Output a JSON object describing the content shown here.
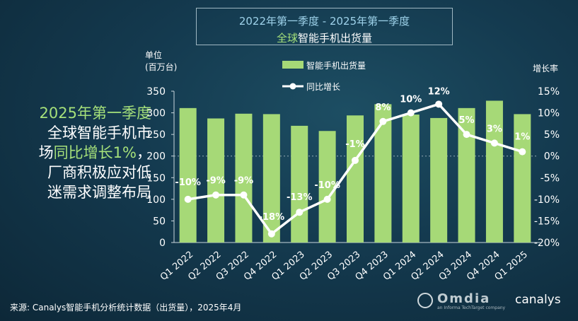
{
  "title": {
    "line1": "2022年第一季度 - 2025年第一季度",
    "line2_prefix": "全球",
    "line2_rest": "智能手机出货量"
  },
  "left_text": {
    "line1": "2025年第一季度",
    "line2": "全球智能手机市",
    "line3_prefix": "场",
    "line3_highlight": "同比增长1%",
    "line3_suffix": "，",
    "line4": "厂商积极应对低",
    "line5": "迷需求调整布局"
  },
  "source": "来源: Canalys智能手机分析统计数据（出货量），2025年4月",
  "logo": {
    "brand": "canalys",
    "faint": "Omdia",
    "sub": "an Informa TechTarget company"
  },
  "colors": {
    "bar": "#a6d977",
    "line": "#ffffff",
    "highlight": "#a5e07a",
    "title_blue": "#9ed2ea"
  },
  "chart_data": {
    "type": "bar",
    "categories": [
      "Q1 2022",
      "Q2 2022",
      "Q3 2022",
      "Q4 2022",
      "Q1 2023",
      "Q2 2023",
      "Q3 2023",
      "Q4 2023",
      "Q1 2024",
      "Q2 2024",
      "Q3 2024",
      "Q4 2024",
      "Q1 2025"
    ],
    "series": [
      {
        "name": "智能手机出货量",
        "type": "bar",
        "axis": "left",
        "values": [
          311,
          287,
          298,
          297,
          270,
          258,
          294,
          320,
          296,
          288,
          311,
          328,
          297
        ]
      },
      {
        "name": "同比增长",
        "type": "line",
        "axis": "right",
        "values": [
          -10,
          -9,
          -9,
          -18,
          -13,
          -10,
          -1,
          8,
          10,
          12,
          5,
          3,
          1
        ],
        "labels": [
          "-10%",
          "-9%",
          "-9%",
          "-18%",
          "-13%",
          "-10%",
          "-1%",
          "8%",
          "10%",
          "12%",
          "5%",
          "3%",
          "1%"
        ]
      }
    ],
    "ylabel_left": [
      "单位",
      "(百万台)"
    ],
    "ylabel_right": "增长率",
    "ylim_left": [
      0,
      350
    ],
    "ylim_right": [
      -20,
      15
    ],
    "yticks_left": [
      "0",
      "50",
      "100",
      "150",
      "200",
      "250",
      "300",
      "350"
    ],
    "yticks_right": [
      "-20%",
      "-15%",
      "-10%",
      "-5%",
      "0%",
      "5%",
      "10%",
      "15%"
    ],
    "legend_position": "top-center",
    "zero_line_dashed": true
  }
}
